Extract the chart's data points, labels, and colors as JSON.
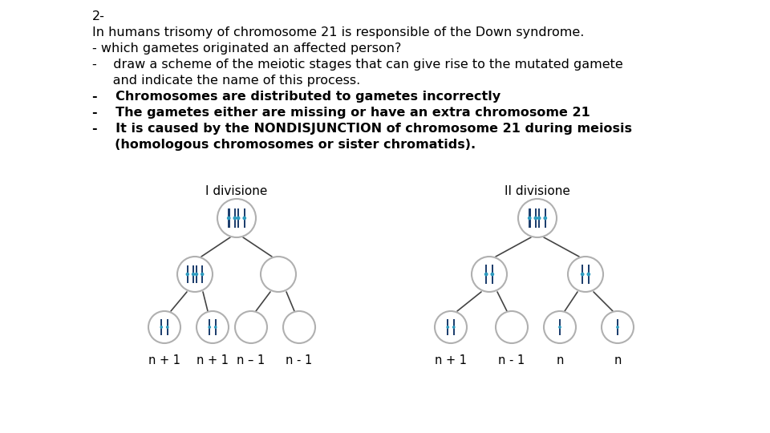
{
  "background_color": "#ffffff",
  "text_color": "#000000",
  "div1_label": "I divisione",
  "div2_label": "II divisione",
  "div1_labels_bottom": [
    "n + 1",
    "n + 1",
    "n – 1",
    "n - 1"
  ],
  "div2_labels_bottom": [
    "n + 1",
    "n - 1",
    "n",
    "n"
  ],
  "chromosome_color_dark": "#1e3f6e",
  "chromosome_color_light": "#2e9bbf",
  "circle_edge_color": "#b0b0b0",
  "circle_fill_color": "#ffffff",
  "arrow_color": "#444444",
  "figsize": [
    9.6,
    5.4
  ],
  "dpi": 100
}
